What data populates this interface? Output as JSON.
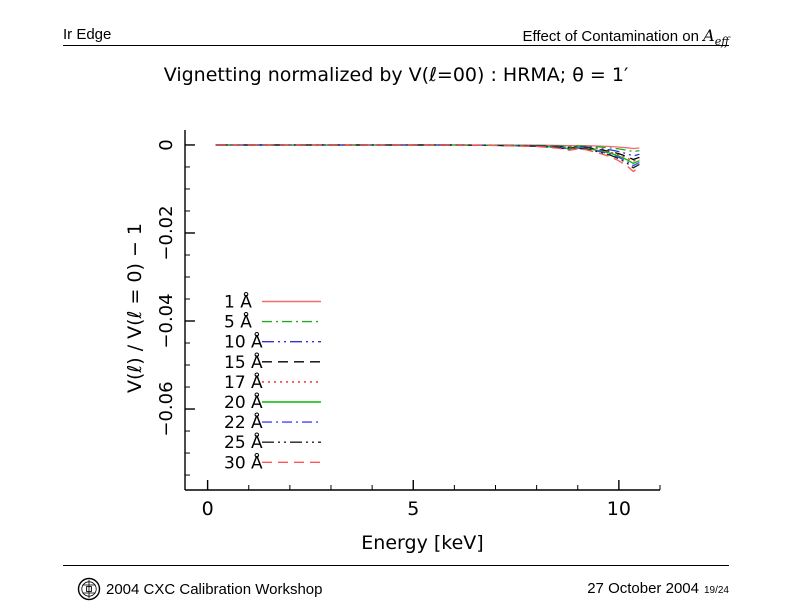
{
  "header": {
    "left": "Ir Edge",
    "right_prefix": "Effect of Contamination on ",
    "right_math_main": "A",
    "right_math_sub": "eff"
  },
  "footer": {
    "left": "2004 CXC Calibration Workshop",
    "right": "27 October 2004",
    "page": "19/24"
  },
  "chart_data": {
    "type": "line",
    "title": "Vignetting normalized by V(ℓ=00) : HRMA; θ = 1′",
    "xlabel": "Energy [keV]",
    "ylabel": "V(ℓ) / V(ℓ = 0) − 1",
    "xlim": [
      -0.55,
      11.0
    ],
    "ylim": [
      -0.0784,
      0.0034
    ],
    "xticks": [
      {
        "v": 0,
        "label": "0"
      },
      {
        "v": 5,
        "label": "5"
      },
      {
        "v": 10,
        "label": "10"
      }
    ],
    "yticks": [
      {
        "v": 0,
        "label": "0"
      },
      {
        "v": -0.02,
        "label": "−0.02"
      },
      {
        "v": -0.04,
        "label": "−0.04"
      },
      {
        "v": -0.06,
        "label": "−0.06"
      }
    ],
    "x_minor_step": 1,
    "y_minor_step": 0.005,
    "grid": false,
    "legend_position": "inside lower-left",
    "x": [
      0.2,
      1,
      2,
      3,
      4,
      5,
      6,
      7,
      8,
      8.5,
      8.8,
      9.0,
      9.2,
      9.5,
      9.8,
      10.0,
      10.2,
      10.35,
      10.5
    ],
    "series": [
      {
        "name": "1 Å",
        "color": "#f26d6d",
        "dash": "",
        "values": [
          0,
          0,
          0,
          0,
          0,
          0,
          0,
          -2e-05,
          -5e-05,
          -0.0001,
          -0.00016,
          -0.00012,
          -0.00014,
          -0.00024,
          -0.00036,
          -0.00048,
          -0.00064,
          -0.0008,
          -0.00068
        ]
      },
      {
        "name": "5 Å",
        "color": "#22aa22",
        "dash": "10 4 2 4",
        "values": [
          0,
          0,
          0,
          0,
          0,
          0,
          0,
          -3e-05,
          -9e-05,
          -0.00018,
          -0.0003,
          -0.00023,
          -0.00027,
          -0.00045,
          -0.00068,
          -0.0009,
          -0.0012,
          -0.0015,
          -0.00128
        ]
      },
      {
        "name": "10 Å",
        "color": "#3333cc",
        "dash": "12 4 2 4 2 4",
        "values": [
          0,
          0,
          0,
          0,
          0,
          0,
          0,
          -5e-05,
          -0.00015,
          -0.0003,
          -0.0005,
          -0.00038,
          -0.00045,
          -0.00075,
          -0.00113,
          -0.0015,
          -0.002,
          -0.0025,
          -0.00213
        ]
      },
      {
        "name": "15 Å",
        "color": "#000000",
        "dash": "10 6",
        "values": [
          0,
          0,
          0,
          0,
          0,
          0,
          0,
          -7e-05,
          -0.0002,
          -0.0004,
          -0.00066,
          -0.0005,
          -0.00059,
          -0.00099,
          -0.00149,
          -0.00198,
          -0.00264,
          -0.0033,
          -0.00281
        ]
      },
      {
        "name": "17 Å",
        "color": "#ee2222",
        "dash": "2 4",
        "values": [
          0,
          0,
          0,
          0,
          0,
          0,
          0,
          -7e-05,
          -0.00022,
          -0.00044,
          -0.00074,
          -0.00056,
          -0.00067,
          -0.00111,
          -0.00167,
          -0.00222,
          -0.00296,
          -0.0037,
          -0.00315
        ]
      },
      {
        "name": "20 Å",
        "color": "#00bb00",
        "dash": "",
        "values": [
          0,
          0,
          0,
          0,
          0,
          0,
          0,
          -8e-05,
          -0.00025,
          -0.0005,
          -0.00084,
          -0.00063,
          -0.00076,
          -0.00126,
          -0.00189,
          -0.00252,
          -0.00336,
          -0.0042,
          -0.00357
        ]
      },
      {
        "name": "22 Å",
        "color": "#4444ff",
        "dash": "10 4 2 4",
        "values": [
          0,
          0,
          0,
          0,
          0,
          0,
          0,
          -9e-05,
          -0.00028,
          -0.00056,
          -0.00094,
          -0.00071,
          -0.00085,
          -0.00141,
          -0.00212,
          -0.00282,
          -0.00376,
          -0.0047,
          -0.004
        ]
      },
      {
        "name": "25 Å",
        "color": "#222222",
        "dash": "12 4 2 4 2 4",
        "values": [
          0,
          0,
          0,
          0,
          0,
          0,
          0,
          -0.0001,
          -0.00031,
          -0.00062,
          -0.00104,
          -0.00078,
          -0.00094,
          -0.00156,
          -0.00234,
          -0.00312,
          -0.00416,
          -0.0052,
          -0.00442
        ]
      },
      {
        "name": "30 Å",
        "color": "#ff5555",
        "dash": "10 6",
        "values": [
          0,
          0,
          0,
          0,
          0,
          0,
          0,
          -0.00012,
          -0.00036,
          -0.00072,
          -0.0012,
          -0.0009,
          -0.00108,
          -0.0018,
          -0.0027,
          -0.0036,
          -0.0048,
          -0.006,
          -0.0051
        ]
      }
    ]
  }
}
